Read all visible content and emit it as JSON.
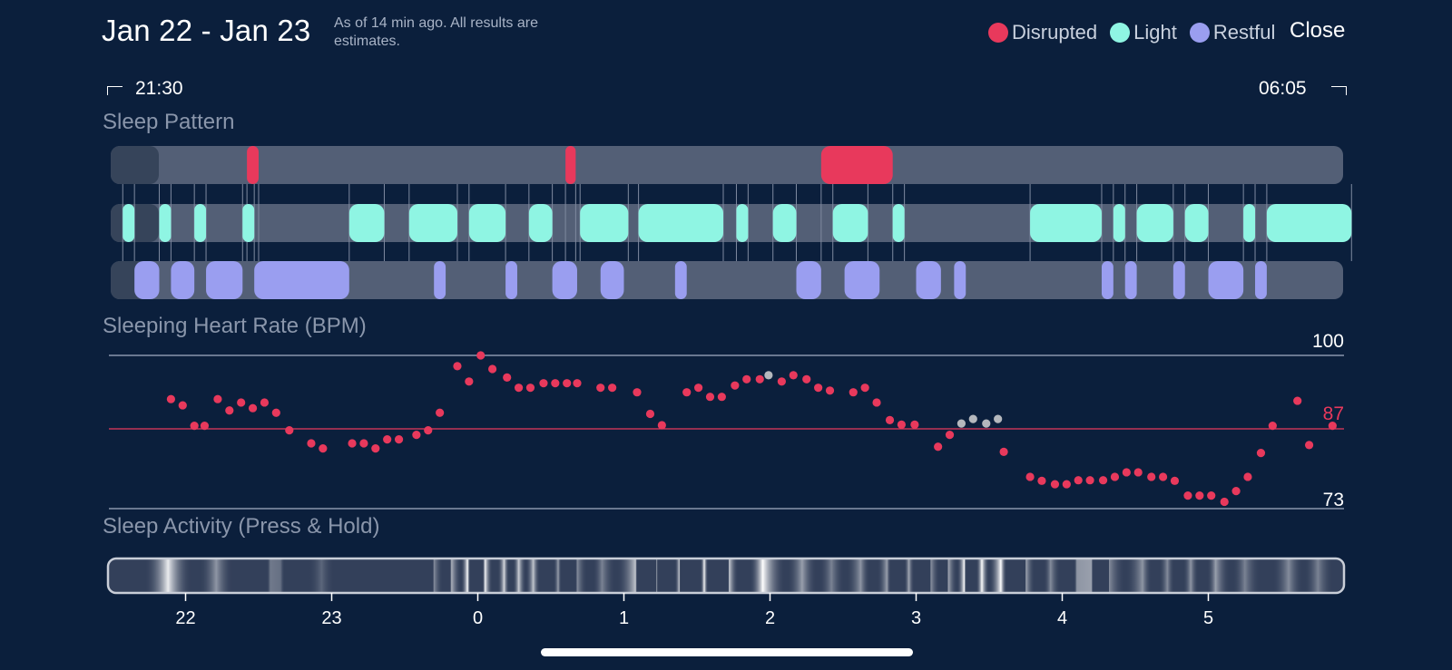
{
  "header": {
    "date_range": "Jan 22 - Jan 23",
    "note": "As of 14 min ago. All results are estimates.",
    "close_label": "Close",
    "start_time": "21:30",
    "end_time": "06:05"
  },
  "legend": [
    {
      "label": "Disrupted",
      "color": "#e8395c"
    },
    {
      "label": "Light",
      "color": "#8ff5e3"
    },
    {
      "label": "Restful",
      "color": "#9a9ef0"
    }
  ],
  "sections": {
    "sleep_pattern": "Sleep Pattern",
    "heart_rate": "Sleeping Heart Rate (BPM)",
    "activity": "Sleep Activity (Press & Hold)"
  },
  "colors": {
    "background": "#0b1f3c",
    "track": "#535f76",
    "disrupted": "#e8395c",
    "light": "#8ff5e3",
    "restful": "#9a9ef0",
    "missing_point": "#b5b8bd"
  },
  "chart_data": {
    "type": "scatter",
    "title": "Sleeping Heart Rate (BPM)",
    "x_unit": "hour of day (22 = 22:00, 0 = midnight)",
    "x_ticks": [
      "22",
      "23",
      "0",
      "1",
      "2",
      "3",
      "4",
      "5"
    ],
    "xlim": [
      21.5,
      6.08
    ],
    "y_labels": [
      "100",
      "87",
      "73"
    ],
    "ylim": [
      73,
      100
    ],
    "reference_line": 87,
    "grid": true,
    "legend_position": "none",
    "series": [
      {
        "values": [
          [
            21.9,
            92.3
          ],
          [
            21.98,
            91.2
          ],
          [
            22.06,
            87.6
          ],
          [
            22.13,
            87.6
          ],
          [
            22.22,
            92.3
          ],
          [
            22.3,
            90.3
          ],
          [
            22.38,
            91.7
          ],
          [
            22.46,
            90.7
          ],
          [
            22.54,
            91.7
          ],
          [
            22.62,
            89.9
          ],
          [
            22.71,
            86.8
          ],
          [
            22.86,
            84.5
          ],
          [
            22.94,
            83.6
          ],
          [
            23.14,
            84.5
          ],
          [
            23.22,
            84.5
          ],
          [
            23.3,
            83.6
          ],
          [
            23.38,
            85.2
          ],
          [
            23.46,
            85.2
          ],
          [
            23.58,
            86.0
          ],
          [
            23.66,
            86.8
          ],
          [
            23.74,
            89.9
          ],
          [
            23.86,
            98.1
          ],
          [
            23.94,
            95.4
          ],
          [
            0.02,
            100.0
          ],
          [
            0.1,
            97.6
          ],
          [
            0.2,
            96.1
          ],
          [
            0.28,
            94.3
          ],
          [
            0.36,
            94.3
          ],
          [
            0.45,
            95.1
          ],
          [
            0.53,
            95.1
          ],
          [
            0.61,
            95.1
          ],
          [
            0.68,
            95.1
          ],
          [
            0.84,
            94.3
          ],
          [
            0.92,
            94.3
          ],
          [
            1.09,
            93.5
          ],
          [
            1.18,
            89.7
          ],
          [
            1.26,
            87.7
          ],
          [
            1.43,
            93.5
          ],
          [
            1.51,
            94.3
          ],
          [
            1.59,
            92.7
          ],
          [
            1.67,
            92.7
          ],
          [
            1.76,
            94.7
          ],
          [
            1.84,
            95.8
          ],
          [
            1.93,
            95.8
          ],
          [
            2.08,
            95.4
          ],
          [
            2.16,
            96.5
          ],
          [
            2.25,
            95.8
          ],
          [
            2.33,
            94.3
          ],
          [
            2.41,
            93.8
          ],
          [
            2.57,
            93.5
          ],
          [
            2.65,
            94.3
          ],
          [
            2.73,
            91.7
          ],
          [
            2.82,
            88.6
          ],
          [
            2.9,
            87.8
          ],
          [
            2.99,
            87.8
          ],
          [
            3.15,
            83.9
          ],
          [
            3.23,
            86.0
          ],
          [
            3.6,
            83.0
          ],
          [
            3.78,
            78.6
          ],
          [
            3.86,
            77.9
          ],
          [
            3.95,
            77.3
          ],
          [
            4.03,
            77.3
          ],
          [
            4.11,
            78.0
          ],
          [
            4.19,
            78.0
          ],
          [
            4.28,
            78.0
          ],
          [
            4.36,
            78.6
          ],
          [
            4.44,
            79.4
          ],
          [
            4.52,
            79.4
          ],
          [
            4.61,
            78.6
          ],
          [
            4.69,
            78.6
          ],
          [
            4.77,
            77.9
          ],
          [
            4.86,
            75.3
          ],
          [
            4.94,
            75.3
          ],
          [
            5.02,
            75.3
          ],
          [
            5.11,
            74.2
          ],
          [
            5.19,
            76.1
          ],
          [
            5.27,
            78.6
          ],
          [
            5.36,
            82.8
          ],
          [
            5.44,
            87.6
          ],
          [
            5.61,
            92.0
          ],
          [
            5.69,
            84.2
          ],
          [
            5.85,
            87.6
          ]
        ]
      },
      {
        "values": [
          [
            1.99,
            96.5
          ],
          [
            3.31,
            88.0
          ],
          [
            3.39,
            88.8
          ],
          [
            3.48,
            88.0
          ],
          [
            3.56,
            88.8
          ]
        ]
      }
    ]
  },
  "sleep_pattern": {
    "disrupted": [
      [
        22.42,
        22.5
      ],
      [
        0.6,
        0.67
      ],
      [
        2.35,
        2.84
      ]
    ],
    "light": [
      [
        21.57,
        21.65
      ],
      [
        21.82,
        21.9
      ],
      [
        22.06,
        22.14
      ],
      [
        22.39,
        22.47
      ],
      [
        23.12,
        23.36
      ],
      [
        23.53,
        23.86
      ],
      [
        23.94,
        0.19
      ],
      [
        0.35,
        0.51
      ],
      [
        0.7,
        1.03
      ],
      [
        1.1,
        1.68
      ],
      [
        1.77,
        1.85
      ],
      [
        2.02,
        2.18
      ],
      [
        2.43,
        2.67
      ],
      [
        2.84,
        2.92
      ],
      [
        3.78,
        4.27
      ],
      [
        4.35,
        4.43
      ],
      [
        4.51,
        4.76
      ],
      [
        4.84,
        5.0
      ],
      [
        5.24,
        5.32
      ],
      [
        5.4,
        5.98
      ]
    ],
    "restful": [
      [
        21.65,
        21.82
      ],
      [
        21.9,
        22.06
      ],
      [
        22.14,
        22.39
      ],
      [
        22.47,
        23.12
      ],
      [
        23.7,
        23.78
      ],
      [
        0.19,
        0.27
      ],
      [
        0.51,
        0.68
      ],
      [
        0.84,
        1.0
      ],
      [
        1.35,
        1.43
      ],
      [
        2.18,
        2.35
      ],
      [
        2.51,
        2.75
      ],
      [
        3.0,
        3.17
      ],
      [
        3.26,
        3.34
      ],
      [
        4.27,
        4.35
      ],
      [
        4.43,
        4.51
      ],
      [
        4.76,
        4.84
      ],
      [
        5.0,
        5.24
      ],
      [
        5.32,
        5.4
      ]
    ]
  },
  "sleep_activity": {
    "peaks": [
      [
        21.88,
        0.9
      ],
      [
        22.21,
        0.45
      ],
      [
        22.58,
        0.3
      ],
      [
        22.65,
        0.25
      ],
      [
        22.93,
        0.2
      ],
      [
        23.7,
        0.4
      ],
      [
        23.82,
        0.6
      ],
      [
        23.93,
        1.0
      ],
      [
        0.05,
        0.95
      ],
      [
        0.18,
        0.8
      ],
      [
        0.28,
        0.75
      ],
      [
        0.38,
        0.7
      ],
      [
        0.55,
        0.5
      ],
      [
        0.68,
        0.4
      ],
      [
        0.85,
        0.35
      ],
      [
        1.08,
        0.7
      ],
      [
        1.22,
        0.6
      ],
      [
        1.38,
        0.75
      ],
      [
        1.55,
        0.95
      ],
      [
        1.72,
        0.75
      ],
      [
        1.95,
        1.0
      ],
      [
        2.22,
        0.5
      ],
      [
        2.42,
        0.35
      ],
      [
        2.62,
        0.45
      ],
      [
        2.8,
        0.5
      ],
      [
        2.95,
        0.55
      ],
      [
        3.1,
        0.45
      ],
      [
        3.22,
        0.55
      ],
      [
        3.33,
        1.0
      ],
      [
        3.45,
        1.0
      ],
      [
        3.58,
        1.0
      ],
      [
        3.75,
        0.55
      ],
      [
        3.92,
        0.4
      ],
      [
        4.1,
        0.45
      ],
      [
        4.2,
        0.5
      ],
      [
        4.32,
        0.4
      ],
      [
        4.55,
        0.45
      ],
      [
        4.72,
        0.4
      ],
      [
        4.88,
        0.45
      ],
      [
        5.05,
        0.5
      ],
      [
        5.25,
        0.35
      ],
      [
        5.55,
        0.4
      ],
      [
        5.75,
        0.35
      ]
    ]
  }
}
